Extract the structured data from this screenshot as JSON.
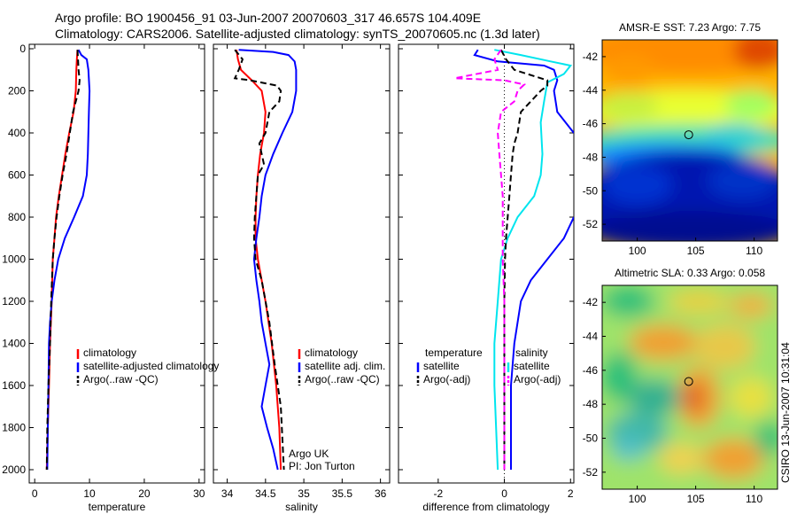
{
  "header": {
    "line1": "Argo profile: BO 1900456_91 03-Jun-2007 20070603_317 46.657S 104.409E",
    "line2": "Climatology: CARS2006. Satellite-adjusted climatology: synTS_20070605.nc (1.3d later)"
  },
  "colors": {
    "climatology": "#ff0000",
    "satellite": "#0000ff",
    "argo": "#000000",
    "salinity_satellite": "#00e5ee",
    "salinity_argo": "#ff00ff"
  },
  "watermark": "CSIRO 13-Jun-2007 10:31:04",
  "chart_data": [
    {
      "type": "line",
      "id": "temperature",
      "xlabel": "temperature",
      "ylabel": "",
      "xlim": [
        -1,
        31
      ],
      "ylim": [
        0,
        2050
      ],
      "y_reversed": true,
      "xticks": [
        0,
        10,
        20,
        30
      ],
      "yticks": [
        0,
        200,
        400,
        600,
        800,
        1000,
        1200,
        1400,
        1600,
        1800,
        2000
      ],
      "legend": {
        "placement": "lower-right",
        "entries": [
          {
            "label": "climatology",
            "color": "#ff0000",
            "dash": "solid"
          },
          {
            "label": "satellite-adjusted climatology",
            "color": "#0000ff",
            "dash": "solid"
          },
          {
            "label": "Argo(..raw -QC)",
            "color": "#000000",
            "dash": "dashed"
          }
        ]
      },
      "series": [
        {
          "key": "climatology",
          "color": "#ff0000",
          "dash": "solid",
          "points": [
            [
              7.8,
              5
            ],
            [
              7.7,
              50
            ],
            [
              7.6,
              100
            ],
            [
              7.5,
              200
            ],
            [
              7.1,
              300
            ],
            [
              6.3,
              400
            ],
            [
              5.6,
              500
            ],
            [
              5.0,
              600
            ],
            [
              4.4,
              700
            ],
            [
              3.9,
              800
            ],
            [
              3.6,
              900
            ],
            [
              3.3,
              1000
            ],
            [
              3.1,
              1200
            ],
            [
              2.8,
              1400
            ],
            [
              2.6,
              1600
            ],
            [
              2.4,
              1800
            ],
            [
              2.2,
              2000
            ]
          ]
        },
        {
          "key": "satellite",
          "color": "#0000ff",
          "dash": "solid",
          "points": [
            [
              8.0,
              5
            ],
            [
              8.5,
              30
            ],
            [
              9.5,
              50
            ],
            [
              9.8,
              100
            ],
            [
              10.0,
              200
            ],
            [
              9.9,
              300
            ],
            [
              9.8,
              400
            ],
            [
              9.7,
              500
            ],
            [
              9.5,
              600
            ],
            [
              8.8,
              700
            ],
            [
              7.2,
              800
            ],
            [
              5.5,
              900
            ],
            [
              4.3,
              1000
            ],
            [
              3.6,
              1100
            ],
            [
              3.1,
              1200
            ],
            [
              2.8,
              1300
            ],
            [
              2.6,
              1400
            ],
            [
              2.5,
              1600
            ],
            [
              2.4,
              1800
            ],
            [
              2.3,
              2000
            ]
          ]
        },
        {
          "key": "argo",
          "color": "#000000",
          "dash": "dashed",
          "points": [
            [
              7.8,
              5
            ],
            [
              7.9,
              50
            ],
            [
              8.0,
              100
            ],
            [
              8.2,
              150
            ],
            [
              8.0,
              200
            ],
            [
              7.5,
              250
            ],
            [
              7.0,
              300
            ],
            [
              6.4,
              400
            ],
            [
              5.8,
              500
            ],
            [
              5.1,
              600
            ],
            [
              4.5,
              700
            ],
            [
              4.0,
              800
            ],
            [
              3.6,
              900
            ],
            [
              3.3,
              1000
            ],
            [
              3.0,
              1200
            ],
            [
              2.8,
              1400
            ],
            [
              2.5,
              1600
            ],
            [
              2.3,
              1800
            ],
            [
              2.2,
              2000
            ]
          ]
        }
      ]
    },
    {
      "type": "line",
      "id": "salinity",
      "xlabel": "salinity",
      "ylabel": "",
      "xlim": [
        33.82,
        36.12
      ],
      "ylim": [
        0,
        2050
      ],
      "y_reversed": true,
      "xticks": [
        34,
        34.5,
        35,
        35.5,
        36
      ],
      "legend": {
        "placement": "lower-right",
        "entries": [
          {
            "label": "climatology",
            "color": "#ff0000",
            "dash": "solid"
          },
          {
            "label": "satellite adj. clim.",
            "color": "#0000ff",
            "dash": "solid"
          },
          {
            "label": "Argo(..raw -QC)",
            "color": "#000000",
            "dash": "dashed"
          }
        ]
      },
      "annotation": [
        "Argo UK",
        "PI: Jon Turton"
      ],
      "series": [
        {
          "key": "climatology",
          "color": "#ff0000",
          "dash": "solid",
          "points": [
            [
              34.12,
              5
            ],
            [
              34.14,
              50
            ],
            [
              34.18,
              100
            ],
            [
              34.32,
              150
            ],
            [
              34.45,
              200
            ],
            [
              34.5,
              300
            ],
            [
              34.48,
              400
            ],
            [
              34.43,
              500
            ],
            [
              34.4,
              600
            ],
            [
              34.38,
              700
            ],
            [
              34.37,
              800
            ],
            [
              34.37,
              900
            ],
            [
              34.4,
              1000
            ],
            [
              34.5,
              1200
            ],
            [
              34.58,
              1400
            ],
            [
              34.64,
              1600
            ],
            [
              34.68,
              1800
            ],
            [
              34.7,
              2000
            ]
          ]
        },
        {
          "key": "satellite",
          "color": "#0000ff",
          "dash": "solid",
          "points": [
            [
              34.15,
              5
            ],
            [
              34.6,
              15
            ],
            [
              34.8,
              30
            ],
            [
              34.88,
              60
            ],
            [
              34.9,
              100
            ],
            [
              34.9,
              200
            ],
            [
              34.85,
              300
            ],
            [
              34.72,
              400
            ],
            [
              34.6,
              500
            ],
            [
              34.5,
              600
            ],
            [
              34.45,
              700
            ],
            [
              34.42,
              800
            ],
            [
              34.38,
              900
            ],
            [
              34.35,
              1000
            ],
            [
              34.38,
              1100
            ],
            [
              34.42,
              1200
            ],
            [
              34.45,
              1300
            ],
            [
              34.5,
              1400
            ],
            [
              34.55,
              1500
            ],
            [
              34.5,
              1600
            ],
            [
              34.45,
              1700
            ],
            [
              34.52,
              1800
            ],
            [
              34.6,
              1900
            ],
            [
              34.66,
              2000
            ]
          ]
        },
        {
          "key": "argo",
          "color": "#000000",
          "dash": "dashed",
          "points": [
            [
              34.1,
              5
            ],
            [
              34.2,
              50
            ],
            [
              34.15,
              100
            ],
            [
              34.1,
              140
            ],
            [
              34.3,
              150
            ],
            [
              34.65,
              175
            ],
            [
              34.7,
              200
            ],
            [
              34.68,
              250
            ],
            [
              34.55,
              300
            ],
            [
              34.5,
              400
            ],
            [
              34.42,
              450
            ],
            [
              34.48,
              550
            ],
            [
              34.4,
              600
            ],
            [
              34.38,
              700
            ],
            [
              34.36,
              800
            ],
            [
              34.35,
              900
            ],
            [
              34.37,
              1000
            ],
            [
              34.45,
              1100
            ],
            [
              34.55,
              1300
            ],
            [
              34.62,
              1500
            ],
            [
              34.7,
              1700
            ],
            [
              34.74,
              2000
            ]
          ]
        }
      ]
    },
    {
      "type": "line",
      "id": "difference",
      "xlabel": "difference from climatology",
      "ylabel": "",
      "xlim": [
        -3.2,
        2.1
      ],
      "ylim": [
        0,
        2050
      ],
      "y_reversed": true,
      "xticks": [
        -2,
        0,
        2
      ],
      "legend": {
        "placement": "lower-center",
        "columns": [
          {
            "title": "temperature",
            "entries": [
              {
                "label": "satellite",
                "color": "#0000ff",
                "dash": "solid"
              },
              {
                "label": "Argo(-adj)",
                "color": "#000000",
                "dash": "dashed"
              }
            ]
          },
          {
            "title": "salinity",
            "entries": [
              {
                "label": "satellite",
                "color": "#00e5ee",
                "dash": "solid"
              },
              {
                "label": "Argo(-adj)",
                "color": "#ff00ff",
                "dash": "dashed"
              }
            ]
          }
        ]
      },
      "series": [
        {
          "key": "temp_satellite",
          "color": "#0000ff",
          "dash": "solid",
          "points": [
            [
              -0.8,
              5
            ],
            [
              -0.9,
              30
            ],
            [
              -0.2,
              60
            ],
            [
              1.2,
              80
            ],
            [
              1.5,
              100
            ],
            [
              1.6,
              150
            ],
            [
              1.5,
              200
            ],
            [
              1.6,
              300
            ],
            [
              2.1,
              400
            ]
          ]
        },
        {
          "key": "temp_satellite_lower",
          "color": "#0000ff",
          "dash": "solid",
          "points": [
            [
              2.1,
              800
            ],
            [
              1.8,
              900
            ],
            [
              1.3,
              1000
            ],
            [
              0.8,
              1100
            ],
            [
              0.5,
              1200
            ],
            [
              0.3,
              1400
            ],
            [
              0.2,
              1600
            ],
            [
              0.2,
              2000
            ]
          ]
        },
        {
          "key": "sal_satellite",
          "color": "#00e5ee",
          "dash": "solid",
          "points": [
            [
              -0.3,
              5
            ],
            [
              0.5,
              30
            ],
            [
              1.4,
              60
            ],
            [
              2.0,
              80
            ],
            [
              1.8,
              120
            ],
            [
              1.3,
              160
            ],
            [
              1.2,
              250
            ],
            [
              1.1,
              350
            ],
            [
              1.15,
              500
            ],
            [
              1.1,
              600
            ],
            [
              0.9,
              700
            ],
            [
              0.4,
              800
            ],
            [
              0.1,
              900
            ],
            [
              -0.1,
              1000
            ],
            [
              -0.2,
              1200
            ],
            [
              -0.3,
              1400
            ],
            [
              -0.3,
              1600
            ],
            [
              -0.25,
              1800
            ],
            [
              -0.2,
              2000
            ]
          ]
        },
        {
          "key": "temp_argo",
          "color": "#000000",
          "dash": "dashed",
          "points": [
            [
              -0.1,
              5
            ],
            [
              0.05,
              50
            ],
            [
              0.3,
              100
            ],
            [
              0.9,
              130
            ],
            [
              1.3,
              150
            ],
            [
              1.3,
              175
            ],
            [
              1.1,
              200
            ],
            [
              0.8,
              250
            ],
            [
              0.5,
              300
            ],
            [
              0.4,
              400
            ],
            [
              0.3,
              450
            ],
            [
              0.25,
              500
            ],
            [
              0.2,
              600
            ],
            [
              0.15,
              700
            ],
            [
              0.1,
              800
            ],
            [
              0.05,
              900
            ],
            [
              0.02,
              1000
            ],
            [
              0.0,
              1200
            ],
            [
              0.0,
              2000
            ]
          ]
        },
        {
          "key": "sal_argo",
          "color": "#ff00ff",
          "dash": "dashed",
          "points": [
            [
              -0.1,
              5
            ],
            [
              -0.3,
              50
            ],
            [
              -0.2,
              100
            ],
            [
              -1.5,
              140
            ],
            [
              0.0,
              150
            ],
            [
              0.6,
              170
            ],
            [
              0.4,
              200
            ],
            [
              0.3,
              250
            ],
            [
              -0.1,
              300
            ],
            [
              -0.2,
              400
            ],
            [
              -0.15,
              500
            ],
            [
              -0.1,
              600
            ],
            [
              -0.05,
              700
            ],
            [
              -0.05,
              800
            ],
            [
              -0.05,
              1000
            ],
            [
              0.0,
              1200
            ],
            [
              0.0,
              2000
            ]
          ]
        }
      ]
    },
    {
      "type": "heatmap",
      "id": "sst_map",
      "title": "AMSR-E SST: 7.23 Argo: 7.75",
      "xlim": [
        97,
        112
      ],
      "ylim": [
        -53,
        -41
      ],
      "xticks": [
        100,
        105,
        110
      ],
      "yticks": [
        -42,
        -44,
        -46,
        -48,
        -50,
        -52
      ],
      "marker": {
        "lon": 104.4,
        "lat": -46.66
      }
    },
    {
      "type": "heatmap",
      "id": "sla_map",
      "title": "Altimetric SLA: 0.33 Argo: 0.058",
      "xlim": [
        97,
        112
      ],
      "ylim": [
        -53,
        -41
      ],
      "xticks": [
        100,
        105,
        110
      ],
      "yticks": [
        -42,
        -44,
        -46,
        -48,
        -50,
        -52
      ],
      "marker": {
        "lon": 104.4,
        "lat": -46.66
      }
    }
  ]
}
